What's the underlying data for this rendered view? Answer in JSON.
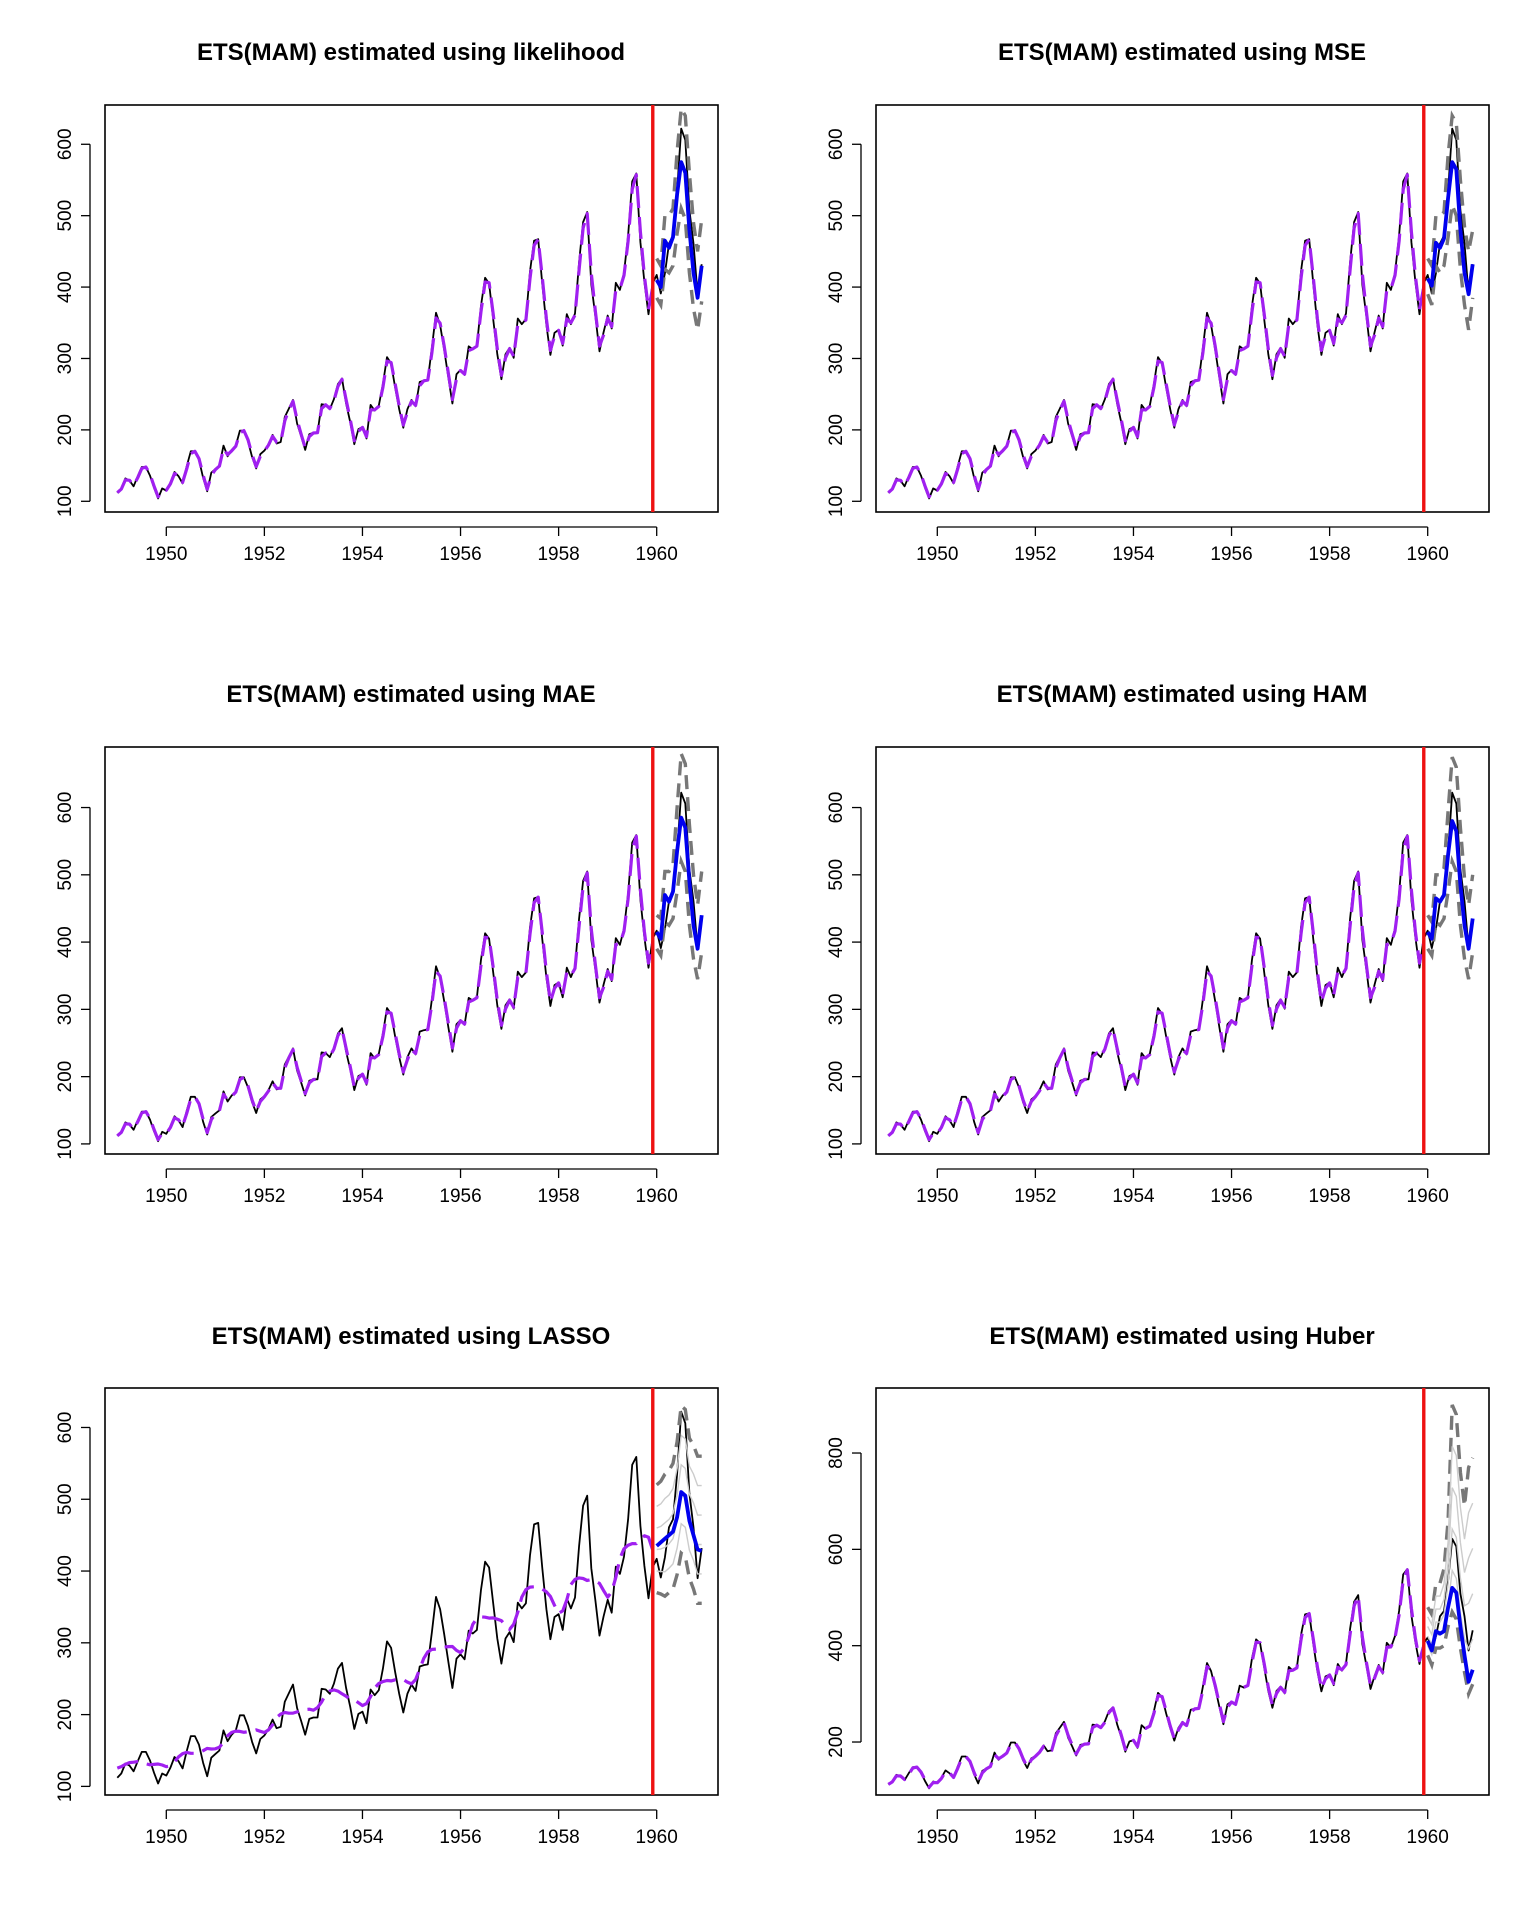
{
  "colors": {
    "actual": "#000000",
    "fitted": "#a020f0",
    "forecast": "#0000ee",
    "interval": "#777777",
    "interval_light": "#cccccc",
    "cutoff": "#ee1111"
  },
  "chart_data": [
    {
      "type": "line",
      "title": "ETS(MAM) estimated using likelihood",
      "xlim": [
        1948.75,
        1961.25
      ],
      "ylim": [
        85,
        655
      ],
      "xticks": [
        1950,
        1952,
        1954,
        1956,
        1958,
        1960
      ],
      "yticks": [
        100,
        200,
        300,
        400,
        500,
        600
      ],
      "cutoff": 1959.92,
      "fit_style": "good",
      "forecast": [
        410,
        400,
        465,
        455,
        470,
        530,
        575,
        560,
        480,
        420,
        385,
        430
      ],
      "upper": [
        440,
        430,
        500,
        500,
        510,
        590,
        650,
        640,
        560,
        490,
        450,
        495
      ],
      "lower": [
        385,
        375,
        425,
        420,
        430,
        475,
        510,
        495,
        420,
        370,
        340,
        380
      ]
    },
    {
      "type": "line",
      "title": "ETS(MAM) estimated using MSE",
      "xlim": [
        1948.75,
        1961.25
      ],
      "ylim": [
        85,
        655
      ],
      "xticks": [
        1950,
        1952,
        1954,
        1956,
        1958,
        1960
      ],
      "yticks": [
        100,
        200,
        300,
        400,
        500,
        600
      ],
      "cutoff": 1959.92,
      "fit_style": "good",
      "forecast": [
        412,
        402,
        462,
        455,
        468,
        525,
        575,
        565,
        480,
        420,
        390,
        432
      ],
      "upper": [
        440,
        430,
        500,
        500,
        505,
        585,
        640,
        630,
        550,
        485,
        450,
        480
      ],
      "lower": [
        390,
        375,
        430,
        420,
        430,
        470,
        515,
        500,
        425,
        375,
        340,
        385
      ]
    },
    {
      "type": "line",
      "title": "ETS(MAM) estimated using MAE",
      "xlim": [
        1948.75,
        1961.25
      ],
      "ylim": [
        85,
        690
      ],
      "xticks": [
        1950,
        1952,
        1954,
        1956,
        1958,
        1960
      ],
      "yticks": [
        100,
        200,
        300,
        400,
        500,
        600
      ],
      "cutoff": 1959.92,
      "fit_style": "good",
      "forecast": [
        415,
        405,
        470,
        460,
        475,
        535,
        585,
        570,
        490,
        425,
        390,
        440
      ],
      "upper": [
        440,
        435,
        505,
        505,
        515,
        600,
        680,
        665,
        575,
        500,
        455,
        505
      ],
      "lower": [
        390,
        380,
        430,
        425,
        435,
        475,
        520,
        505,
        425,
        375,
        345,
        385
      ]
    },
    {
      "type": "line",
      "title": "ETS(MAM) estimated using HAM",
      "xlim": [
        1948.75,
        1961.25
      ],
      "ylim": [
        85,
        690
      ],
      "xticks": [
        1950,
        1952,
        1954,
        1956,
        1958,
        1960
      ],
      "yticks": [
        100,
        200,
        300,
        400,
        500,
        600
      ],
      "cutoff": 1959.92,
      "fit_style": "good",
      "forecast": [
        415,
        405,
        465,
        460,
        470,
        530,
        580,
        565,
        485,
        425,
        390,
        435
      ],
      "upper": [
        440,
        430,
        500,
        500,
        510,
        595,
        675,
        660,
        570,
        495,
        455,
        500
      ],
      "lower": [
        390,
        380,
        430,
        425,
        435,
        475,
        520,
        505,
        425,
        375,
        345,
        385
      ]
    },
    {
      "type": "line",
      "title": "ETS(MAM) estimated using LASSO",
      "xlim": [
        1948.75,
        1961.25
      ],
      "ylim": [
        88,
        655
      ],
      "xticks": [
        1950,
        1952,
        1954,
        1956,
        1958,
        1960
      ],
      "yticks": [
        100,
        200,
        300,
        400,
        500,
        600
      ],
      "cutoff": 1959.92,
      "fit_style": "smooth",
      "forecast": [
        435,
        440,
        445,
        450,
        455,
        475,
        510,
        505,
        470,
        450,
        430,
        428
      ],
      "upper": [
        520,
        525,
        535,
        540,
        550,
        580,
        630,
        625,
        585,
        575,
        560,
        560
      ],
      "lower": [
        370,
        368,
        365,
        370,
        375,
        395,
        425,
        420,
        390,
        375,
        355,
        355
      ]
    },
    {
      "type": "line",
      "title": "ETS(MAM) estimated using Huber",
      "xlim": [
        1948.75,
        1961.25
      ],
      "ylim": [
        90,
        935
      ],
      "xticks": [
        1950,
        1952,
        1954,
        1956,
        1958,
        1960
      ],
      "yticks": [
        200,
        400,
        600,
        800
      ],
      "cutoff": 1959.92,
      "fit_style": "good",
      "forecast": [
        410,
        390,
        430,
        425,
        430,
        480,
        520,
        510,
        440,
        380,
        325,
        350
      ],
      "upper": [
        480,
        465,
        530,
        530,
        560,
        660,
        900,
        880,
        760,
        690,
        770,
        790
      ],
      "lower": [
        380,
        360,
        395,
        395,
        400,
        440,
        470,
        455,
        395,
        345,
        300,
        320
      ]
    }
  ],
  "series": {
    "actual_start": 1949.0,
    "actual_monthly": [
      112,
      118,
      132,
      129,
      121,
      135,
      148,
      148,
      136,
      119,
      104,
      118,
      115,
      126,
      141,
      135,
      125,
      149,
      170,
      170,
      158,
      133,
      114,
      140,
      145,
      150,
      178,
      163,
      172,
      178,
      199,
      199,
      184,
      162,
      146,
      166,
      171,
      180,
      193,
      181,
      183,
      218,
      230,
      242,
      209,
      191,
      172,
      194,
      196,
      196,
      236,
      235,
      229,
      243,
      264,
      272,
      237,
      211,
      180,
      201,
      204,
      188,
      235,
      227,
      234,
      264,
      302,
      293,
      259,
      229,
      203,
      229,
      242,
      233,
      267,
      269,
      270,
      315,
      364,
      347,
      312,
      274,
      237,
      278,
      284,
      277,
      317,
      313,
      318,
      374,
      413,
      405,
      355,
      306,
      271,
      306,
      315,
      301,
      356,
      348,
      355,
      422,
      465,
      467,
      404,
      347,
      305,
      336,
      340,
      318,
      362,
      348,
      363,
      435,
      491,
      505,
      404,
      359,
      310,
      337,
      360,
      342,
      406,
      396,
      420,
      472,
      548,
      559,
      463,
      407,
      362,
      405,
      417,
      391,
      419,
      461,
      472,
      535,
      622,
      606,
      508,
      461,
      390,
      432
    ]
  }
}
